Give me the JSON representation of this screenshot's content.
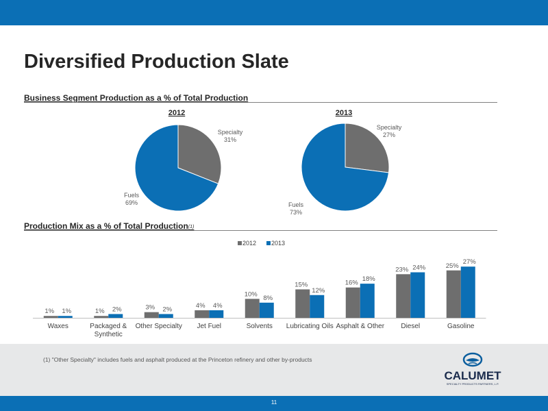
{
  "title": "Diversified Production Slate",
  "section1": {
    "heading": "Business Segment Production as a % of Total Production"
  },
  "section2": {
    "heading": "Production Mix as a % of Total Production",
    "note_ref": "(1)"
  },
  "footnote": "(1)  \"Other Specialty\" includes fuels and asphalt produced at the Princeton refinery and other by-products",
  "logo": {
    "name": "CALUMET",
    "tagline": "SPECIALTY PRODUCTS PARTNERS, L.P."
  },
  "page_number": "11",
  "colors": {
    "accent": "#0b6fb5",
    "gray_series": "#6e6e6e",
    "blue_series": "#0b6fb5"
  },
  "chart_data": [
    {
      "type": "pie",
      "title": "2012",
      "labels": [
        "Specialty",
        "Fuels"
      ],
      "values": [
        31,
        69
      ],
      "value_labels": [
        "31%",
        "69%"
      ],
      "colors": [
        "#6e6e6e",
        "#0b6fb5"
      ]
    },
    {
      "type": "pie",
      "title": "2013",
      "labels": [
        "Specialty",
        "Fuels"
      ],
      "values": [
        27,
        73
      ],
      "value_labels": [
        "27%",
        "73%"
      ],
      "colors": [
        "#6e6e6e",
        "#0b6fb5"
      ]
    },
    {
      "type": "bar",
      "title": "",
      "categories": [
        "Waxes",
        "Packaged & Synthetic",
        "Other Specialty",
        "Jet Fuel",
        "Solvents",
        "Lubricating Oils",
        "Asphalt & Other",
        "Diesel",
        "Gasoline"
      ],
      "series": [
        {
          "name": "2012",
          "values": [
            1,
            1,
            3,
            4,
            10,
            15,
            16,
            23,
            25
          ],
          "labels": [
            "1%",
            "1%",
            "3%",
            "4%",
            "10%",
            "15%",
            "16%",
            "23%",
            "25%"
          ],
          "color": "#6e6e6e"
        },
        {
          "name": "2013",
          "values": [
            1,
            2,
            2,
            4,
            8,
            12,
            18,
            24,
            27
          ],
          "labels": [
            "1%",
            "2%",
            "2%",
            "4%",
            "8%",
            "12%",
            "18%",
            "24%",
            "27%"
          ],
          "color": "#0b6fb5"
        }
      ],
      "legend_position": "top-center",
      "ylim": [
        0,
        30
      ],
      "grid": false
    }
  ]
}
